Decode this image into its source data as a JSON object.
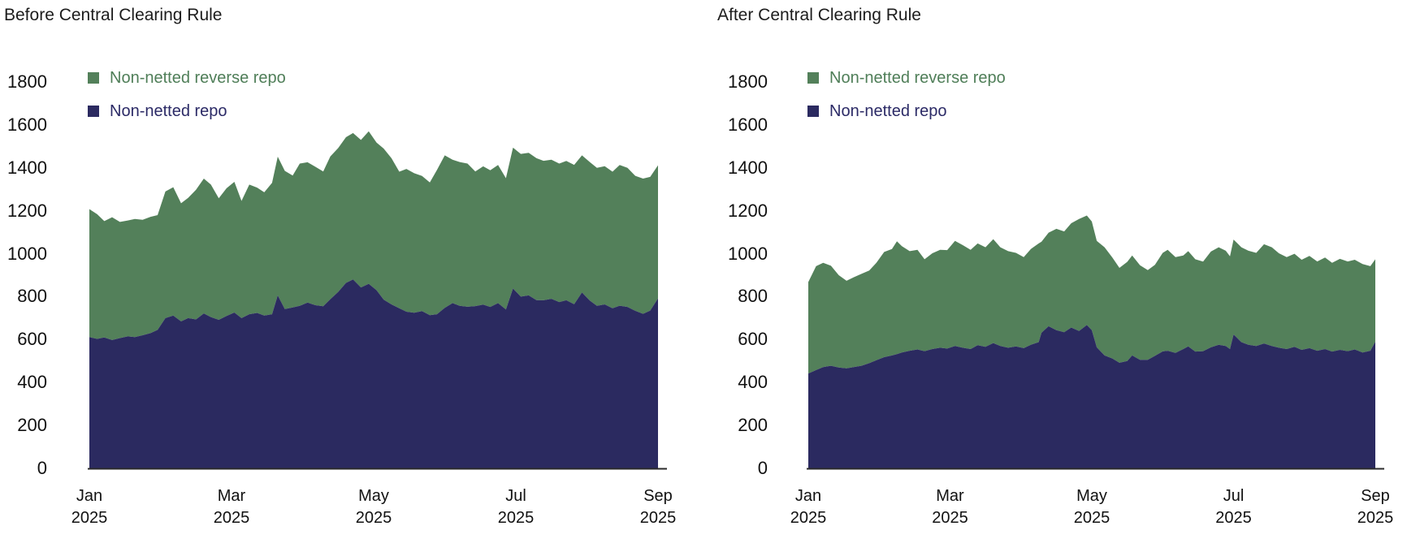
{
  "figure": {
    "background": "#ffffff"
  },
  "colors": {
    "axis_line": "#2b2b2b",
    "tick_text": "#111111",
    "title_text": "#1c1c1c",
    "repo_fill": "#2b2a60",
    "reverse_repo_fill": "#53805a",
    "repo_legend_text": "#2b2a66",
    "reverse_repo_legend_text": "#4f7e58"
  },
  "chart_data": [
    {
      "type": "area",
      "stacked": true,
      "title": "Before Central Clearing Rule",
      "legend_position": "upper-left",
      "grid": false,
      "x_unit": "months since Jan 2025",
      "xlim": [
        0,
        8
      ],
      "ylim": [
        0,
        1800
      ],
      "y_ticks": [
        0,
        200,
        400,
        600,
        800,
        1000,
        1200,
        1400,
        1600,
        1800
      ],
      "x_ticks": [
        {
          "month": "Jan",
          "year": "2025",
          "x": 0
        },
        {
          "month": "Mar",
          "year": "2025",
          "x": 2
        },
        {
          "month": "May",
          "year": "2025",
          "x": 4
        },
        {
          "month": "Jul",
          "year": "2025",
          "x": 6
        },
        {
          "month": "Sep",
          "year": "2025",
          "x": 8
        }
      ],
      "x": [
        0,
        0.11,
        0.21,
        0.32,
        0.43,
        0.54,
        0.64,
        0.75,
        0.86,
        0.96,
        1.07,
        1.18,
        1.29,
        1.39,
        1.5,
        1.61,
        1.71,
        1.82,
        1.93,
        2.04,
        2.14,
        2.25,
        2.36,
        2.46,
        2.57,
        2.65,
        2.75,
        2.86,
        2.96,
        3.07,
        3.18,
        3.29,
        3.39,
        3.5,
        3.61,
        3.71,
        3.82,
        3.93,
        4.04,
        4.14,
        4.25,
        4.36,
        4.46,
        4.57,
        4.68,
        4.79,
        4.89,
        5.0,
        5.11,
        5.21,
        5.32,
        5.43,
        5.54,
        5.64,
        5.75,
        5.86,
        5.96,
        6.07,
        6.18,
        6.29,
        6.39,
        6.5,
        6.61,
        6.71,
        6.82,
        6.93,
        7.04,
        7.14,
        7.25,
        7.36,
        7.46,
        7.57,
        7.68,
        7.79,
        7.89,
        8.0
      ],
      "series": [
        {
          "name": "Non-netted repo",
          "stack_order": "bottom",
          "values": [
            612,
            603,
            610,
            598,
            607,
            615,
            612,
            620,
            630,
            645,
            700,
            712,
            685,
            700,
            694,
            722,
            705,
            692,
            710,
            726,
            700,
            718,
            724,
            712,
            718,
            806,
            742,
            750,
            757,
            772,
            760,
            755,
            788,
            822,
            864,
            880,
            843,
            860,
            830,
            786,
            764,
            746,
            730,
            725,
            733,
            714,
            718,
            748,
            770,
            757,
            753,
            756,
            763,
            752,
            770,
            740,
            838,
            800,
            806,
            784,
            783,
            790,
            775,
            783,
            765,
            820,
            782,
            757,
            764,
            746,
            758,
            752,
            734,
            720,
            735,
            792
          ]
        },
        {
          "name": "Non-netted reverse repo",
          "stack_order": "top",
          "values": [
            596,
            581,
            542,
            572,
            541,
            540,
            550,
            538,
            542,
            535,
            590,
            598,
            550,
            560,
            604,
            628,
            617,
            566,
            595,
            609,
            546,
            604,
            584,
            574,
            612,
            646,
            644,
            614,
            663,
            654,
            645,
            628,
            665,
            670,
            679,
            682,
            687,
            710,
            688,
            704,
            681,
            636,
            665,
            650,
            629,
            618,
            672,
            710,
            668,
            670,
            667,
            627,
            644,
            637,
            643,
            612,
            656,
            665,
            664,
            661,
            650,
            648,
            645,
            649,
            649,
            638,
            645,
            643,
            644,
            636,
            655,
            648,
            629,
            630,
            623,
            620
          ]
        }
      ]
    },
    {
      "type": "area",
      "stacked": true,
      "title": "After Central Clearing Rule",
      "legend_position": "upper-left",
      "grid": false,
      "x_unit": "months since Jan 2025",
      "xlim": [
        0,
        8
      ],
      "ylim": [
        0,
        1800
      ],
      "y_ticks": [
        0,
        200,
        400,
        600,
        800,
        1000,
        1200,
        1400,
        1600,
        1800
      ],
      "x_ticks": [
        {
          "month": "Jan",
          "year": "2025",
          "x": 0
        },
        {
          "month": "Mar",
          "year": "2025",
          "x": 2
        },
        {
          "month": "May",
          "year": "2025",
          "x": 4
        },
        {
          "month": "Jul",
          "year": "2025",
          "x": 6
        },
        {
          "month": "Sep",
          "year": "2025",
          "x": 8
        }
      ],
      "x": [
        0,
        0.11,
        0.21,
        0.32,
        0.43,
        0.54,
        0.64,
        0.75,
        0.86,
        0.96,
        1.07,
        1.18,
        1.25,
        1.32,
        1.43,
        1.54,
        1.64,
        1.75,
        1.86,
        1.96,
        2.07,
        2.18,
        2.29,
        2.39,
        2.5,
        2.61,
        2.71,
        2.82,
        2.93,
        3.04,
        3.14,
        3.25,
        3.29,
        3.39,
        3.5,
        3.61,
        3.71,
        3.82,
        3.93,
        4.0,
        4.07,
        4.18,
        4.29,
        4.39,
        4.5,
        4.57,
        4.68,
        4.79,
        4.89,
        5.0,
        5.07,
        5.18,
        5.29,
        5.36,
        5.46,
        5.57,
        5.68,
        5.79,
        5.89,
        5.95,
        6.0,
        6.11,
        6.21,
        6.32,
        6.43,
        6.54,
        6.64,
        6.75,
        6.86,
        6.96,
        7.07,
        7.18,
        7.29,
        7.39,
        7.5,
        7.61,
        7.71,
        7.82,
        7.93,
        8.0
      ],
      "series": [
        {
          "name": "Non-netted repo",
          "stack_order": "bottom",
          "values": [
            442,
            458,
            472,
            478,
            470,
            466,
            472,
            478,
            490,
            504,
            518,
            526,
            532,
            540,
            548,
            554,
            546,
            556,
            562,
            558,
            570,
            562,
            556,
            574,
            566,
            584,
            570,
            562,
            568,
            560,
            576,
            588,
            632,
            662,
            644,
            634,
            656,
            640,
            668,
            644,
            564,
            526,
            512,
            492,
            500,
            526,
            506,
            506,
            524,
            545,
            548,
            538,
            556,
            568,
            544,
            546,
            564,
            576,
            570,
            556,
            624,
            588,
            576,
            570,
            582,
            570,
            562,
            556,
            566,
            552,
            560,
            548,
            556,
            544,
            552,
            546,
            554,
            540,
            548,
            590
          ]
        },
        {
          "name": "Non-netted reverse repo",
          "stack_order": "top",
          "values": [
            426,
            484,
            486,
            466,
            430,
            408,
            418,
            428,
            432,
            454,
            490,
            496,
            526,
            495,
            464,
            464,
            428,
            446,
            456,
            459,
            490,
            478,
            462,
            474,
            464,
            484,
            460,
            450,
            436,
            424,
            446,
            460,
            424,
            436,
            472,
            470,
            486,
            522,
            510,
            506,
            496,
            504,
            470,
            442,
            462,
            466,
            440,
            418,
            424,
            459,
            470,
            446,
            436,
            444,
            430,
            417,
            446,
            454,
            444,
            432,
            442,
            442,
            438,
            434,
            462,
            460,
            440,
            428,
            434,
            420,
            430,
            416,
            426,
            414,
            424,
            418,
            418,
            412,
            394,
            384
          ]
        }
      ]
    }
  ]
}
